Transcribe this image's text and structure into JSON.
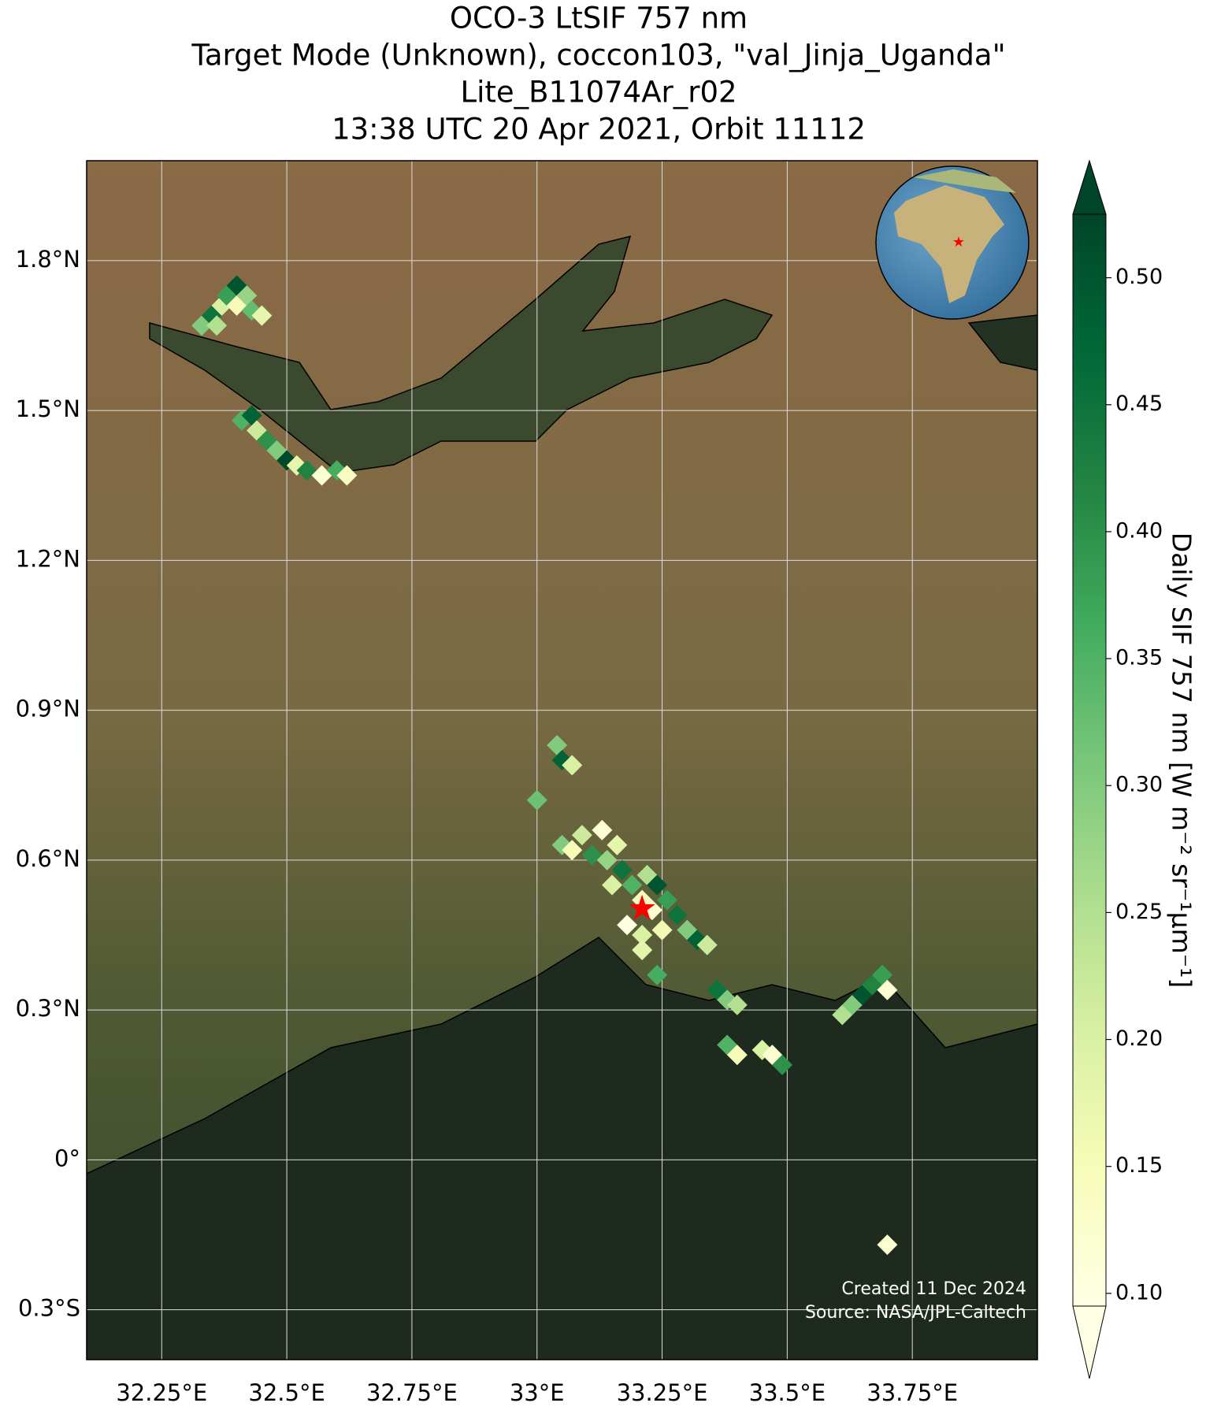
{
  "header": {
    "title_lines": [
      "OCO-3 LtSIF 757 nm",
      "Target Mode (Unknown), coccon103, \"val_Jinja_Uganda\"",
      "Lite_B11074Ar_r02",
      "13:38 UTC 20 Apr 2021, Orbit 11112"
    ]
  },
  "map": {
    "xlim": [
      32.1,
      34.0
    ],
    "ylim": [
      -0.4,
      2.0
    ],
    "xticks": [
      {
        "value": 32.25,
        "label": "32.25°E"
      },
      {
        "value": 32.5,
        "label": "32.5°E"
      },
      {
        "value": 32.75,
        "label": "32.75°E"
      },
      {
        "value": 33,
        "label": "33°E"
      },
      {
        "value": 33.25,
        "label": "33.25°E"
      },
      {
        "value": 33.5,
        "label": "33.5°E"
      },
      {
        "value": 33.75,
        "label": "33.75°E"
      }
    ],
    "yticks": [
      {
        "value": 1.8,
        "label": "1.8°N"
      },
      {
        "value": 1.5,
        "label": "1.5°N"
      },
      {
        "value": 1.2,
        "label": "1.2°N"
      },
      {
        "value": 0.9,
        "label": "0.9°N"
      },
      {
        "value": 0.6,
        "label": "0.6°N"
      },
      {
        "value": 0.3,
        "label": "0.3°N"
      },
      {
        "value": 0,
        "label": "0°"
      },
      {
        "value": -0.3,
        "label": "0.3°S"
      }
    ],
    "grid": true,
    "target": {
      "lon": 33.21,
      "lat": 0.5,
      "color": "#ff0000"
    },
    "pixels": {
      "lon": [
        32.33,
        32.35,
        32.37,
        32.38,
        32.4,
        32.4,
        32.42,
        32.43,
        32.45,
        32.36,
        32.41,
        32.43,
        32.44,
        32.46,
        32.48,
        32.5,
        32.52,
        32.54,
        32.57,
        32.6,
        32.62,
        33.04,
        33.05,
        33.07,
        33.0,
        33.05,
        33.07,
        33.09,
        33.11,
        33.13,
        33.14,
        33.16,
        33.17,
        33.15,
        33.19,
        33.21,
        33.22,
        33.24,
        33.23,
        33.26,
        33.25,
        33.28,
        33.21,
        33.3,
        33.32,
        33.34,
        33.21,
        33.24,
        33.18,
        33.36,
        33.38,
        33.4,
        33.38,
        33.4,
        33.45,
        33.47,
        33.49,
        33.61,
        33.63,
        33.65,
        33.67,
        33.69,
        33.7,
        33.7
      ],
      "lat": [
        1.67,
        1.69,
        1.71,
        1.73,
        1.75,
        1.71,
        1.73,
        1.7,
        1.69,
        1.67,
        1.48,
        1.49,
        1.46,
        1.44,
        1.42,
        1.4,
        1.39,
        1.38,
        1.37,
        1.38,
        1.37,
        0.83,
        0.8,
        0.79,
        0.72,
        0.63,
        0.62,
        0.65,
        0.61,
        0.66,
        0.6,
        0.63,
        0.58,
        0.55,
        0.55,
        0.52,
        0.57,
        0.55,
        0.5,
        0.52,
        0.46,
        0.49,
        0.45,
        0.46,
        0.44,
        0.43,
        0.42,
        0.37,
        0.47,
        0.34,
        0.32,
        0.31,
        0.23,
        0.21,
        0.22,
        0.21,
        0.19,
        0.29,
        0.31,
        0.33,
        0.35,
        0.37,
        0.34,
        -0.17
      ],
      "values": [
        0.3,
        0.45,
        0.2,
        0.38,
        0.5,
        0.15,
        0.28,
        0.33,
        0.18,
        0.25,
        0.35,
        0.48,
        0.22,
        0.4,
        0.3,
        0.52,
        0.18,
        0.42,
        0.12,
        0.36,
        0.14,
        0.3,
        0.48,
        0.2,
        0.32,
        0.3,
        0.15,
        0.22,
        0.4,
        0.12,
        0.28,
        0.18,
        0.45,
        0.2,
        0.35,
        0.14,
        0.25,
        0.5,
        0.12,
        0.38,
        0.16,
        0.45,
        0.2,
        0.3,
        0.48,
        0.22,
        0.18,
        0.36,
        0.1,
        0.45,
        0.3,
        0.25,
        0.35,
        0.15,
        0.2,
        0.12,
        0.4,
        0.25,
        0.3,
        0.5,
        0.42,
        0.38,
        0.12,
        0.12
      ]
    },
    "credit": [
      "Created 11 Dec 2024",
      "Source: NASA/JPL-Caltech"
    ]
  },
  "colorbar": {
    "label": "Daily SIF 757 nm [W m⁻² sr⁻¹µm⁻¹]",
    "clim": [
      0.095,
      0.525
    ],
    "ticks": [
      {
        "value": 0.1,
        "label": "0.10"
      },
      {
        "value": 0.15,
        "label": "0.15"
      },
      {
        "value": 0.2,
        "label": "0.20"
      },
      {
        "value": 0.25,
        "label": "0.25"
      },
      {
        "value": 0.3,
        "label": "0.30"
      },
      {
        "value": 0.35,
        "label": "0.35"
      },
      {
        "value": 0.4,
        "label": "0.40"
      },
      {
        "value": 0.45,
        "label": "0.45"
      },
      {
        "value": 0.5,
        "label": "0.50"
      }
    ],
    "colors": [
      "#ffffe5",
      "#f7fcb9",
      "#d9f0a3",
      "#addd8e",
      "#78c679",
      "#41ab5d",
      "#238443",
      "#006837",
      "#004529"
    ]
  }
}
